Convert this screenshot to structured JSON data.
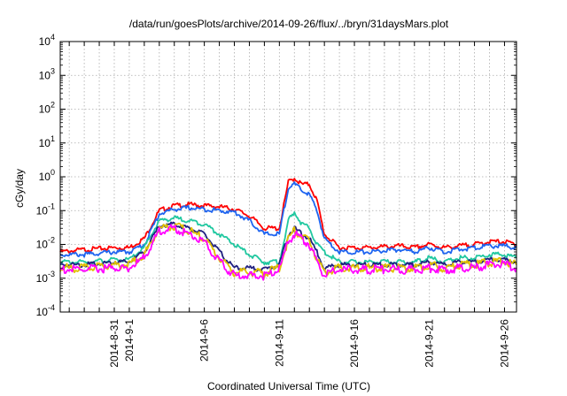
{
  "chart_data": {
    "type": "line",
    "title": "/data/run/goesPlots/archive/2014-09-26/flux/../bryn/31daysMars.plot",
    "xlabel": "Coordinated Universal Time (UTC)",
    "ylabel": "cGy/day",
    "yscale": "log",
    "ylim": [
      0.0001,
      10000
    ],
    "xlim": [
      27.4,
      57.8
    ],
    "grid": true,
    "y_ticks": [
      {
        "mant": "10",
        "exp": "-4"
      },
      {
        "mant": "10",
        "exp": "-3"
      },
      {
        "mant": "10",
        "exp": "-2"
      },
      {
        "mant": "10",
        "exp": "-1"
      },
      {
        "mant": "10",
        "exp": "0"
      },
      {
        "mant": "10",
        "exp": "1"
      },
      {
        "mant": "10",
        "exp": "2"
      },
      {
        "mant": "10",
        "exp": "3"
      },
      {
        "mant": "10",
        "exp": "4"
      }
    ],
    "x_ticks": [
      {
        "x": 31,
        "label": "2014-8-31"
      },
      {
        "x": 32,
        "label": "2014-9-1"
      },
      {
        "x": 37,
        "label": "2014-9-6"
      },
      {
        "x": 42,
        "label": "2014-9-11"
      },
      {
        "x": 47,
        "label": "2014-9-16"
      },
      {
        "x": 52,
        "label": "2014-9-21"
      },
      {
        "x": 57,
        "label": "2014-9-26"
      }
    ],
    "series": [
      {
        "color": "#ff0000",
        "points": [
          [
            27.4,
            0.006
          ],
          [
            29,
            0.007
          ],
          [
            31,
            0.008
          ],
          [
            32,
            0.008
          ],
          [
            33,
            0.015
          ],
          [
            34,
            0.1
          ],
          [
            35,
            0.14
          ],
          [
            36,
            0.15
          ],
          [
            37,
            0.14
          ],
          [
            38,
            0.13
          ],
          [
            39,
            0.11
          ],
          [
            40,
            0.07
          ],
          [
            41,
            0.03
          ],
          [
            42,
            0.03
          ],
          [
            42.6,
            0.7
          ],
          [
            43,
            0.9
          ],
          [
            43.5,
            0.6
          ],
          [
            44,
            0.6
          ],
          [
            44.5,
            0.2
          ],
          [
            45,
            0.02
          ],
          [
            46,
            0.008
          ],
          [
            47,
            0.008
          ],
          [
            48,
            0.008
          ],
          [
            50,
            0.009
          ],
          [
            51,
            0.008
          ],
          [
            52,
            0.01
          ],
          [
            53,
            0.008
          ],
          [
            54,
            0.009
          ],
          [
            55,
            0.01
          ],
          [
            56,
            0.012
          ],
          [
            57,
            0.012
          ],
          [
            57.8,
            0.01
          ]
        ]
      },
      {
        "color": "#1e64f0",
        "points": [
          [
            27.4,
            0.005
          ],
          [
            29,
            0.005
          ],
          [
            31,
            0.006
          ],
          [
            32,
            0.006
          ],
          [
            33,
            0.01
          ],
          [
            34,
            0.08
          ],
          [
            35,
            0.11
          ],
          [
            36,
            0.12
          ],
          [
            37,
            0.11
          ],
          [
            38,
            0.1
          ],
          [
            39,
            0.09
          ],
          [
            40,
            0.05
          ],
          [
            41,
            0.02
          ],
          [
            42,
            0.02
          ],
          [
            42.6,
            0.5
          ],
          [
            43,
            0.6
          ],
          [
            43.5,
            0.4
          ],
          [
            44,
            0.3
          ],
          [
            44.5,
            0.1
          ],
          [
            45,
            0.015
          ],
          [
            46,
            0.006
          ],
          [
            47,
            0.006
          ],
          [
            48,
            0.006
          ],
          [
            50,
            0.007
          ],
          [
            51,
            0.006
          ],
          [
            52,
            0.008
          ],
          [
            53,
            0.006
          ],
          [
            54,
            0.007
          ],
          [
            55,
            0.008
          ],
          [
            56,
            0.009
          ],
          [
            57,
            0.009
          ],
          [
            57.8,
            0.008
          ]
        ]
      },
      {
        "color": "#20c8a0",
        "points": [
          [
            27.4,
            0.003
          ],
          [
            29,
            0.003
          ],
          [
            31,
            0.0035
          ],
          [
            32,
            0.0035
          ],
          [
            33,
            0.008
          ],
          [
            34,
            0.05
          ],
          [
            35,
            0.06
          ],
          [
            36,
            0.05
          ],
          [
            37,
            0.04
          ],
          [
            38,
            0.02
          ],
          [
            39,
            0.01
          ],
          [
            40,
            0.005
          ],
          [
            41,
            0.003
          ],
          [
            42,
            0.003
          ],
          [
            42.6,
            0.05
          ],
          [
            43,
            0.09
          ],
          [
            43.5,
            0.04
          ],
          [
            44,
            0.03
          ],
          [
            44.5,
            0.01
          ],
          [
            45,
            0.006
          ],
          [
            46,
            0.003
          ],
          [
            47,
            0.003
          ],
          [
            48,
            0.003
          ],
          [
            50,
            0.003
          ],
          [
            51,
            0.003
          ],
          [
            52,
            0.004
          ],
          [
            53,
            0.003
          ],
          [
            54,
            0.004
          ],
          [
            55,
            0.004
          ],
          [
            56,
            0.005
          ],
          [
            57,
            0.005
          ],
          [
            57.8,
            0.004
          ]
        ]
      },
      {
        "color": "#202080",
        "points": [
          [
            27.4,
            0.0025
          ],
          [
            29,
            0.0025
          ],
          [
            31,
            0.003
          ],
          [
            32,
            0.003
          ],
          [
            33,
            0.006
          ],
          [
            34,
            0.035
          ],
          [
            35,
            0.04
          ],
          [
            36,
            0.03
          ],
          [
            37,
            0.02
          ],
          [
            38,
            0.006
          ],
          [
            39,
            0.002
          ],
          [
            40,
            0.002
          ],
          [
            41,
            0.0018
          ],
          [
            42,
            0.0025
          ],
          [
            42.6,
            0.02
          ],
          [
            43,
            0.03
          ],
          [
            43.5,
            0.02
          ],
          [
            44,
            0.015
          ],
          [
            44.5,
            0.006
          ],
          [
            45,
            0.002
          ],
          [
            46,
            0.0025
          ],
          [
            47,
            0.0025
          ],
          [
            48,
            0.0025
          ],
          [
            50,
            0.0025
          ],
          [
            51,
            0.0025
          ],
          [
            52,
            0.003
          ],
          [
            53,
            0.0025
          ],
          [
            54,
            0.003
          ],
          [
            55,
            0.003
          ],
          [
            56,
            0.0035
          ],
          [
            57,
            0.0035
          ],
          [
            57.8,
            0.003
          ]
        ]
      },
      {
        "color": "#e0c000",
        "points": [
          [
            27.4,
            0.002
          ],
          [
            29,
            0.002
          ],
          [
            31,
            0.0025
          ],
          [
            32,
            0.0025
          ],
          [
            33,
            0.005
          ],
          [
            34,
            0.03
          ],
          [
            35,
            0.035
          ],
          [
            36,
            0.025
          ],
          [
            37,
            0.015
          ],
          [
            38,
            0.004
          ],
          [
            39,
            0.0015
          ],
          [
            40,
            0.0015
          ],
          [
            41,
            0.0014
          ],
          [
            42,
            0.002
          ],
          [
            42.6,
            0.015
          ],
          [
            43,
            0.025
          ],
          [
            43.5,
            0.018
          ],
          [
            44,
            0.012
          ],
          [
            44.5,
            0.004
          ],
          [
            45,
            0.0015
          ],
          [
            46,
            0.002
          ],
          [
            47,
            0.002
          ],
          [
            48,
            0.002
          ],
          [
            50,
            0.002
          ],
          [
            51,
            0.002
          ],
          [
            52,
            0.0025
          ],
          [
            53,
            0.002
          ],
          [
            54,
            0.0025
          ],
          [
            55,
            0.0025
          ],
          [
            56,
            0.003
          ],
          [
            57,
            0.003
          ],
          [
            57.8,
            0.0025
          ]
        ]
      },
      {
        "color": "#ff00ff",
        "points": [
          [
            27.4,
            0.0018
          ],
          [
            29,
            0.0018
          ],
          [
            31,
            0.002
          ],
          [
            32,
            0.002
          ],
          [
            33,
            0.004
          ],
          [
            34,
            0.025
          ],
          [
            35,
            0.03
          ],
          [
            36,
            0.02
          ],
          [
            37,
            0.012
          ],
          [
            38,
            0.003
          ],
          [
            39,
            0.0012
          ],
          [
            40,
            0.0012
          ],
          [
            41,
            0.0012
          ],
          [
            42,
            0.0018
          ],
          [
            42.6,
            0.012
          ],
          [
            43,
            0.02
          ],
          [
            43.5,
            0.015
          ],
          [
            44,
            0.01
          ],
          [
            44.5,
            0.003
          ],
          [
            45,
            0.0012
          ],
          [
            46,
            0.0018
          ],
          [
            47,
            0.0018
          ],
          [
            48,
            0.0018
          ],
          [
            50,
            0.0018
          ],
          [
            51,
            0.0018
          ],
          [
            52,
            0.002
          ],
          [
            53,
            0.0018
          ],
          [
            54,
            0.002
          ],
          [
            55,
            0.002
          ],
          [
            56,
            0.0025
          ],
          [
            57,
            0.0025
          ],
          [
            57.8,
            0.002
          ]
        ]
      }
    ]
  }
}
